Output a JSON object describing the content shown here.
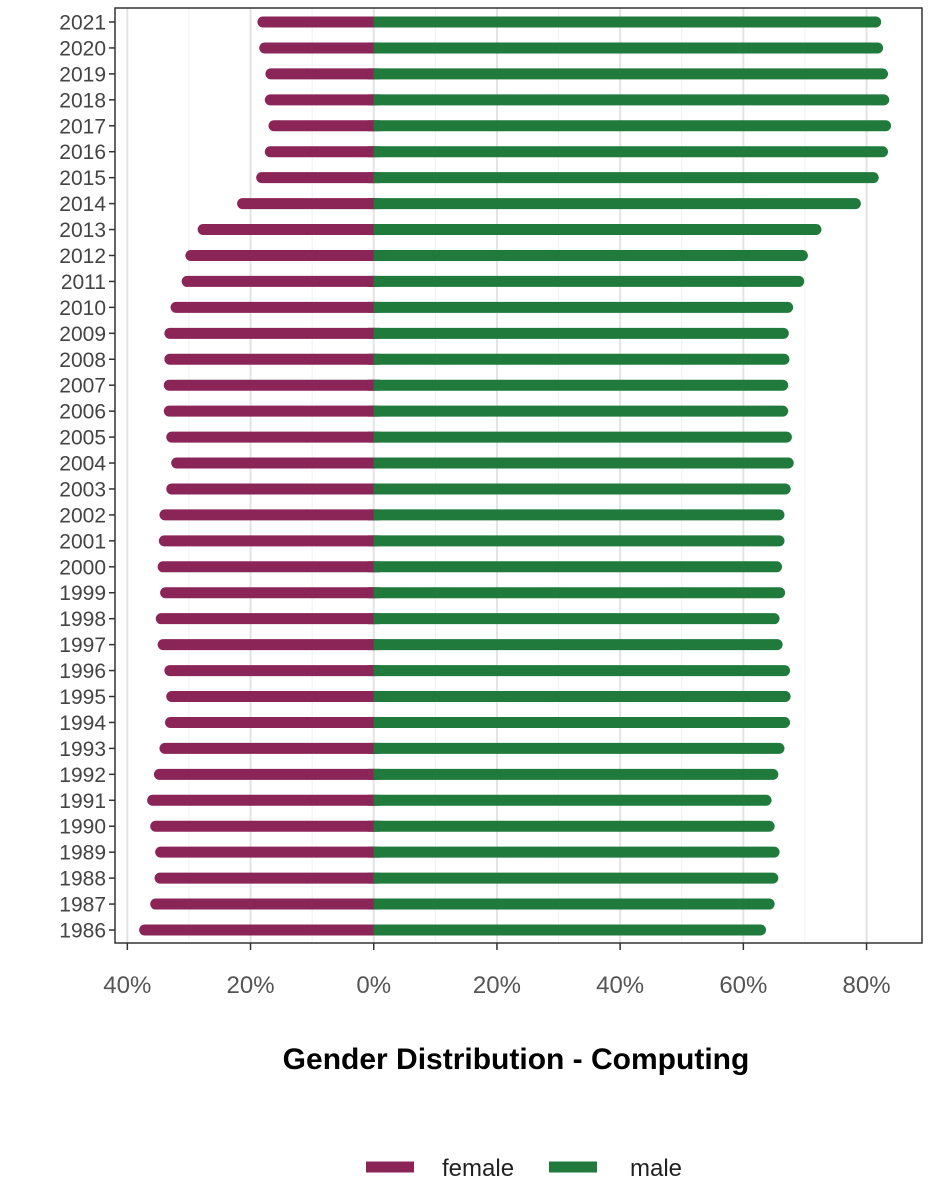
{
  "chart_data": {
    "type": "bar",
    "orientation": "horizontal",
    "title": "",
    "xlabel": "Gender Distribution - Computing",
    "ylabel": "",
    "xlim": [
      -42,
      89
    ],
    "x_ticks": [
      -40,
      -20,
      0,
      20,
      40,
      60,
      80
    ],
    "x_tick_labels": [
      "40%",
      "20%",
      "0%",
      "20%",
      "40%",
      "60%",
      "80%"
    ],
    "grid": true,
    "legend_position": "bottom",
    "categories": [
      "1986",
      "1987",
      "1988",
      "1989",
      "1990",
      "1991",
      "1992",
      "1993",
      "1994",
      "1995",
      "1996",
      "1997",
      "1998",
      "1999",
      "2000",
      "2001",
      "2002",
      "2003",
      "2004",
      "2005",
      "2006",
      "2007",
      "2008",
      "2009",
      "2010",
      "2011",
      "2012",
      "2013",
      "2014",
      "2015",
      "2016",
      "2017",
      "2018",
      "2019",
      "2020",
      "2021"
    ],
    "series": [
      {
        "name": "female",
        "color": "#8b2457",
        "values": [
          38.0,
          36.2,
          35.5,
          35.4,
          36.2,
          36.7,
          35.6,
          34.7,
          33.8,
          33.6,
          33.9,
          35.0,
          35.3,
          34.6,
          35.0,
          34.8,
          34.7,
          33.6,
          32.8,
          33.6,
          34.0,
          34.0,
          33.9,
          33.9,
          32.9,
          31.1,
          30.5,
          28.5,
          22.1,
          19.0,
          17.6,
          17.0,
          17.6,
          17.5,
          18.5,
          18.8
        ]
      },
      {
        "name": "male",
        "color": "#1f7a3c",
        "values": [
          63.6,
          65.0,
          65.6,
          65.8,
          65.0,
          64.5,
          65.6,
          66.6,
          67.5,
          67.6,
          67.5,
          66.3,
          65.8,
          66.7,
          66.2,
          66.6,
          66.6,
          67.6,
          68.1,
          67.8,
          67.2,
          67.2,
          67.4,
          67.3,
          68.0,
          69.8,
          70.4,
          72.6,
          79.0,
          81.9,
          83.4,
          83.9,
          83.6,
          83.4,
          82.6,
          82.3
        ]
      }
    ]
  }
}
